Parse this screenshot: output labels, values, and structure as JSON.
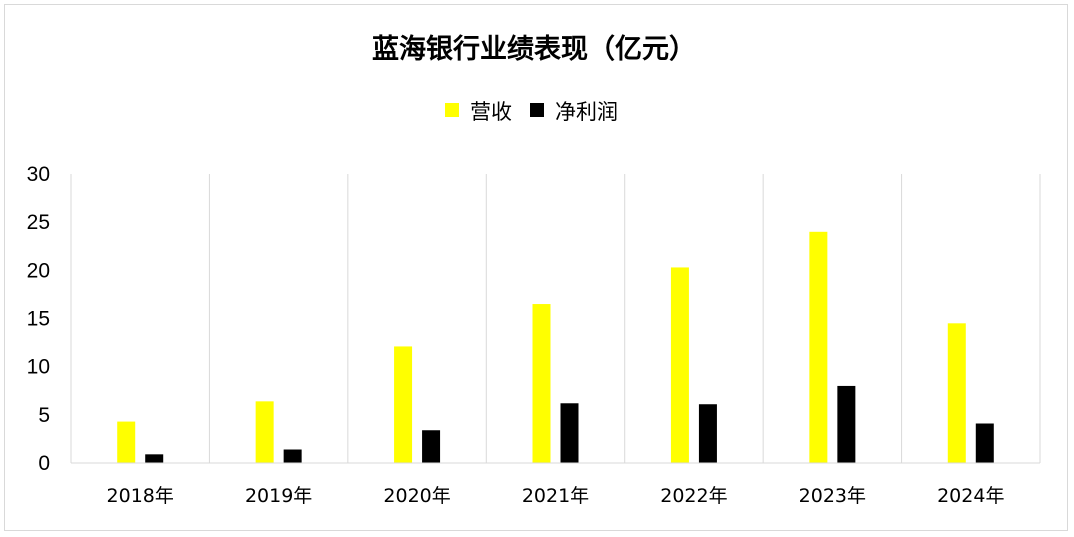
{
  "chart_data": {
    "type": "bar",
    "title": "蓝海银行业绩表现（亿元）",
    "categories": [
      "2018年",
      "2019年",
      "2020年",
      "2021年",
      "2022年",
      "2023年",
      "2024年"
    ],
    "series": [
      {
        "name": "营收",
        "color": "#ffff00",
        "values": [
          4.3,
          6.4,
          12.1,
          16.5,
          20.3,
          24.0,
          14.5
        ]
      },
      {
        "name": "净利润",
        "color": "#000000",
        "values": [
          0.9,
          1.4,
          3.4,
          6.2,
          6.1,
          8.0,
          4.1
        ]
      }
    ],
    "yticks": [
      "0",
      "5",
      "10",
      "15",
      "20",
      "25",
      "30"
    ],
    "ylim": [
      0,
      30
    ],
    "grid": "vertical category separators",
    "legend_position": "top"
  }
}
